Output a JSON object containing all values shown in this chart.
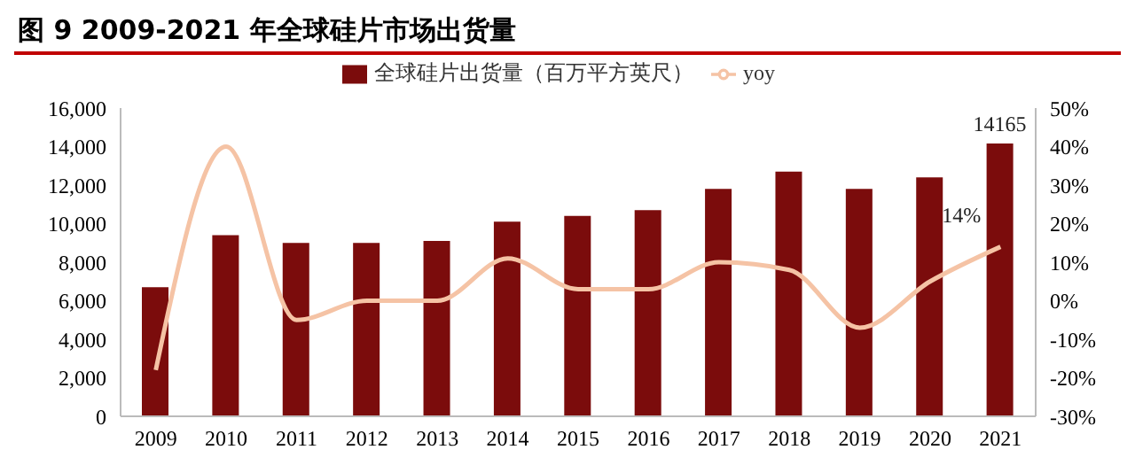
{
  "chart_data": {
    "type": "bar",
    "title": "图 9 2009-2021 年全球硅片市场出货量",
    "categories": [
      "2009",
      "2010",
      "2011",
      "2012",
      "2013",
      "2014",
      "2015",
      "2016",
      "2017",
      "2018",
      "2019",
      "2020",
      "2021"
    ],
    "series": [
      {
        "name": "全球硅片出货量（百万平方英尺）",
        "color": "#7b0c0c",
        "values": [
          6700,
          9400,
          9000,
          9000,
          9100,
          10100,
          10400,
          10700,
          11800,
          12700,
          11800,
          12400,
          14165
        ],
        "value_labels": [
          null,
          null,
          null,
          null,
          null,
          null,
          null,
          null,
          null,
          null,
          null,
          null,
          "14165"
        ]
      },
      {
        "name": "yoy",
        "type": "line",
        "axis": "y2",
        "color": "#f5c3a5",
        "values": [
          -18,
          40,
          -5,
          0,
          0,
          11,
          3,
          3,
          10,
          8,
          -7,
          5,
          14
        ],
        "value_labels": [
          null,
          null,
          null,
          null,
          null,
          null,
          null,
          null,
          null,
          null,
          null,
          null,
          "14%"
        ]
      }
    ],
    "ylim": [
      0,
      16000
    ],
    "yticks": [
      {
        "value": 0,
        "label": "0"
      },
      {
        "value": 2000,
        "label": "2,000"
      },
      {
        "value": 4000,
        "label": "4,000"
      },
      {
        "value": 6000,
        "label": "6,000"
      },
      {
        "value": 8000,
        "label": "8,000"
      },
      {
        "value": 10000,
        "label": "10,000"
      },
      {
        "value": 12000,
        "label": "12,000"
      },
      {
        "value": 14000,
        "label": "14,000"
      },
      {
        "value": 16000,
        "label": "16,000"
      }
    ],
    "y2lim": [
      -30,
      50
    ],
    "y2ticks": [
      {
        "value": -30,
        "label": "-30%"
      },
      {
        "value": -20,
        "label": "-20%"
      },
      {
        "value": -10,
        "label": "-10%"
      },
      {
        "value": 0,
        "label": "0%"
      },
      {
        "value": 10,
        "label": "10%"
      },
      {
        "value": 20,
        "label": "20%"
      },
      {
        "value": 30,
        "label": "30%"
      },
      {
        "value": 40,
        "label": "40%"
      },
      {
        "value": 50,
        "label": "50%"
      }
    ],
    "legend": "top",
    "grid": false,
    "marker": "none"
  }
}
